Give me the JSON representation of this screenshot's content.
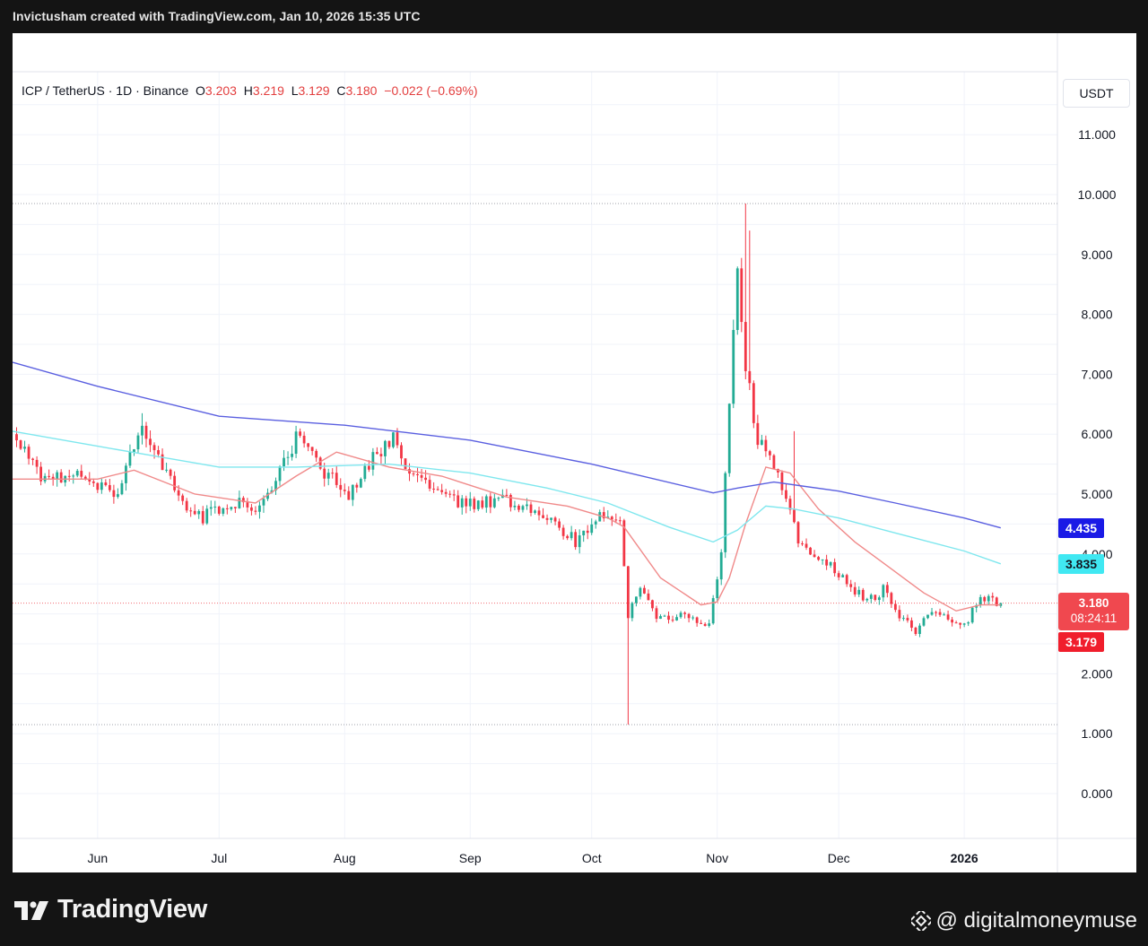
{
  "caption": "Invictusham created with TradingView.com, Jan 10, 2026 15:35 UTC",
  "legend": {
    "symbol": "ICP / TetherUS · 1D · Binance",
    "open_key": "O",
    "open": "3.203",
    "high_key": "H",
    "high": "3.219",
    "low_key": "L",
    "low": "3.129",
    "close_key": "C",
    "close": "3.180",
    "change": "−0.022 (−0.69%)"
  },
  "currency": "USDT",
  "tags": {
    "ma200": "4.435",
    "ma100": "3.835",
    "last_price": "3.180",
    "countdown": "08:24:11",
    "bid": "3.179"
  },
  "brand": "TradingView",
  "watermark": "@ digitalmoneymuse",
  "colors": {
    "up": "#22ab94",
    "down": "#f23645",
    "ma_fast": "#f08a8a",
    "ma_mid": "#7fe7ee",
    "ma_slow": "#5a5fe0",
    "ma200_tag": "#1a1ae6",
    "ma100_tag": "#40e8f2",
    "last_tag": "#f0484f",
    "bid_tag": "#f01e2c"
  },
  "chart_data": {
    "type": "candlestick",
    "ylim": [
      -0.6,
      11.0
    ],
    "yticks": [
      0,
      1,
      2,
      3,
      4,
      5,
      6,
      7,
      8,
      9,
      10,
      11
    ],
    "ytick_labels": [
      "0.000",
      "1.000",
      "2.000",
      "3.000",
      "4.000",
      "5.000",
      "6.000",
      "7.000",
      "8.000",
      "9.000",
      "10.000",
      "11.000"
    ],
    "xlim": [
      "2025-05-11",
      "2026-01-24"
    ],
    "x_ticks": [
      {
        "date": "2025-06-01",
        "label": "Jun"
      },
      {
        "date": "2025-07-01",
        "label": "Jul"
      },
      {
        "date": "2025-08-01",
        "label": "Aug"
      },
      {
        "date": "2025-09-01",
        "label": "Sep"
      },
      {
        "date": "2025-10-01",
        "label": "Oct"
      },
      {
        "date": "2025-11-01",
        "label": "Nov"
      },
      {
        "date": "2025-12-01",
        "label": "Dec"
      },
      {
        "date": "2026-01-01",
        "label": "2026"
      }
    ],
    "anchors": [
      [
        "2025-05-12",
        6.0
      ],
      [
        "2025-05-18",
        5.2
      ],
      [
        "2025-05-25",
        5.3
      ],
      [
        "2025-05-31",
        5.2
      ],
      [
        "2025-06-06",
        5.0
      ],
      [
        "2025-06-12",
        6.2
      ],
      [
        "2025-06-17",
        5.5
      ],
      [
        "2025-06-22",
        4.8
      ],
      [
        "2025-06-27",
        4.6
      ],
      [
        "2025-07-04",
        4.9
      ],
      [
        "2025-07-10",
        4.8
      ],
      [
        "2025-07-15",
        5.2
      ],
      [
        "2025-07-21",
        6.1
      ],
      [
        "2025-07-26",
        5.4
      ],
      [
        "2025-08-02",
        5.0
      ],
      [
        "2025-08-08",
        5.6
      ],
      [
        "2025-08-13",
        5.9
      ],
      [
        "2025-08-18",
        5.3
      ],
      [
        "2025-08-25",
        5.1
      ],
      [
        "2025-08-31",
        4.8
      ],
      [
        "2025-09-08",
        4.9
      ],
      [
        "2025-09-15",
        4.8
      ],
      [
        "2025-09-22",
        4.5
      ],
      [
        "2025-09-27",
        4.2
      ],
      [
        "2025-10-03",
        4.6
      ],
      [
        "2025-10-08",
        4.5
      ],
      [
        "2025-10-10",
        3.0
      ],
      [
        "2025-10-13",
        3.5
      ],
      [
        "2025-10-17",
        2.9
      ],
      [
        "2025-10-24",
        3.0
      ],
      [
        "2025-10-30",
        2.8
      ],
      [
        "2025-11-02",
        4.0
      ],
      [
        "2025-11-04",
        6.5
      ],
      [
        "2025-11-06",
        8.9
      ],
      [
        "2025-11-08",
        7.2
      ],
      [
        "2025-11-11",
        5.9
      ],
      [
        "2025-11-14",
        5.6
      ],
      [
        "2025-11-18",
        5.0
      ],
      [
        "2025-11-21",
        4.2
      ],
      [
        "2025-11-26",
        4.0
      ],
      [
        "2025-12-02",
        3.6
      ],
      [
        "2025-12-08",
        3.2
      ],
      [
        "2025-12-12",
        3.4
      ],
      [
        "2025-12-17",
        2.9
      ],
      [
        "2025-12-20",
        2.7
      ],
      [
        "2025-12-24",
        3.1
      ],
      [
        "2025-12-28",
        2.9
      ],
      [
        "2026-01-01",
        2.8
      ],
      [
        "2026-01-05",
        3.3
      ],
      [
        "2026-01-10",
        3.18
      ]
    ],
    "wick_extremes": [
      {
        "date": "2025-10-10",
        "low": 1.15
      },
      {
        "date": "2025-11-08",
        "high": 9.85
      },
      {
        "date": "2025-11-09",
        "high": 9.4
      },
      {
        "date": "2025-11-20",
        "high": 6.05
      },
      {
        "date": "2025-06-12",
        "high": 6.35
      }
    ],
    "series": [
      {
        "name": "",
        "color": "#f08a8a",
        "points": [
          [
            "2025-05-11",
            5.25
          ],
          [
            "2025-06-01",
            5.25
          ],
          [
            "2025-06-10",
            5.4
          ],
          [
            "2025-06-25",
            5.0
          ],
          [
            "2025-07-10",
            4.85
          ],
          [
            "2025-07-20",
            5.3
          ],
          [
            "2025-07-30",
            5.7
          ],
          [
            "2025-08-12",
            5.45
          ],
          [
            "2025-08-25",
            5.3
          ],
          [
            "2025-09-10",
            4.95
          ],
          [
            "2025-09-25",
            4.8
          ],
          [
            "2025-10-05",
            4.6
          ],
          [
            "2025-10-09",
            4.45
          ],
          [
            "2025-10-18",
            3.6
          ],
          [
            "2025-10-28",
            3.15
          ],
          [
            "2025-11-01",
            3.2
          ],
          [
            "2025-11-04",
            3.6
          ],
          [
            "2025-11-08",
            4.5
          ],
          [
            "2025-11-13",
            5.45
          ],
          [
            "2025-11-19",
            5.35
          ],
          [
            "2025-11-26",
            4.75
          ],
          [
            "2025-12-05",
            4.2
          ],
          [
            "2025-12-15",
            3.7
          ],
          [
            "2025-12-22",
            3.35
          ],
          [
            "2025-12-30",
            3.05
          ],
          [
            "2026-01-05",
            3.15
          ],
          [
            "2026-01-10",
            3.15
          ]
        ]
      },
      {
        "name": "",
        "color": "#7fe7ee",
        "points": [
          [
            "2025-05-11",
            6.05
          ],
          [
            "2025-06-01",
            5.8
          ],
          [
            "2025-07-01",
            5.45
          ],
          [
            "2025-07-20",
            5.45
          ],
          [
            "2025-08-12",
            5.5
          ],
          [
            "2025-09-01",
            5.35
          ],
          [
            "2025-09-20",
            5.1
          ],
          [
            "2025-10-05",
            4.85
          ],
          [
            "2025-10-20",
            4.45
          ],
          [
            "2025-10-31",
            4.2
          ],
          [
            "2025-11-06",
            4.4
          ],
          [
            "2025-11-13",
            4.8
          ],
          [
            "2025-11-20",
            4.75
          ],
          [
            "2025-12-01",
            4.6
          ],
          [
            "2025-12-15",
            4.35
          ],
          [
            "2026-01-01",
            4.05
          ],
          [
            "2026-01-10",
            3.835
          ]
        ]
      },
      {
        "name": "",
        "color": "#5a5fe0",
        "points": [
          [
            "2025-05-11",
            7.2
          ],
          [
            "2025-06-01",
            6.8
          ],
          [
            "2025-07-01",
            6.3
          ],
          [
            "2025-08-01",
            6.15
          ],
          [
            "2025-09-01",
            5.9
          ],
          [
            "2025-10-01",
            5.5
          ],
          [
            "2025-10-31",
            5.02
          ],
          [
            "2025-11-06",
            5.1
          ],
          [
            "2025-11-15",
            5.2
          ],
          [
            "2025-12-01",
            5.05
          ],
          [
            "2025-12-15",
            4.85
          ],
          [
            "2026-01-01",
            4.6
          ],
          [
            "2026-01-10",
            4.435
          ]
        ]
      }
    ],
    "reference_lines": [
      9.85,
      1.15,
      3.18
    ],
    "grid": true
  }
}
